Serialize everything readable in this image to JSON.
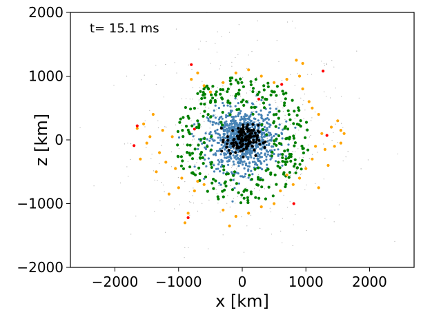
{
  "chart_data": {
    "type": "scatter",
    "annotation": "t= 15.1 ms",
    "xlabel": "x [km]",
    "ylabel": "z [km]",
    "xlim": [
      -2700,
      2700
    ],
    "ylim": [
      -2000,
      2000
    ],
    "xticks": [
      -2000,
      -1000,
      0,
      1000,
      2000
    ],
    "xtick_labels": [
      "−2000",
      "−1000",
      "0",
      "1000",
      "2000"
    ],
    "yticks": [
      -2000,
      -1000,
      0,
      1000,
      2000
    ],
    "ytick_labels": [
      "−2000",
      "−1000",
      "0",
      "1000",
      "2000"
    ],
    "grid": false,
    "legend": "none",
    "series": [
      {
        "color": "#aaaaaa",
        "marker": "tiny",
        "distribution": {
          "count": 420,
          "radius": 1600
        }
      },
      {
        "color": "#4682b4",
        "marker": "small",
        "distribution": {
          "count": 900,
          "radius": 480
        }
      },
      {
        "color": "#008000",
        "marker": "dot",
        "distribution": {
          "count": 300,
          "radius_min": 350,
          "radius_max": 1050
        }
      },
      {
        "color": "#ffa500",
        "marker": "dot",
        "points": [
          [
            -1650,
            180
          ],
          [
            -1600,
            -300
          ],
          [
            -1550,
            250
          ],
          [
            -1500,
            -50
          ],
          [
            -1450,
            50
          ],
          [
            -1300,
            -200
          ],
          [
            -1250,
            150
          ],
          [
            -1200,
            -350
          ],
          [
            -1100,
            50
          ],
          [
            -1050,
            -450
          ],
          [
            -1000,
            -750
          ],
          [
            -950,
            -600
          ],
          [
            -900,
            -1300
          ],
          [
            -850,
            -1150
          ],
          [
            -750,
            -800
          ],
          [
            -700,
            -650
          ],
          [
            -800,
            950
          ],
          [
            -700,
            1050
          ],
          [
            -600,
            850
          ],
          [
            -500,
            750
          ],
          [
            -300,
            -1100
          ],
          [
            -200,
            -1350
          ],
          [
            -100,
            -1200
          ],
          [
            100,
            -1150
          ],
          [
            300,
            -1050
          ],
          [
            500,
            -1000
          ],
          [
            600,
            -800
          ],
          [
            800,
            -700
          ],
          [
            900,
            -600
          ],
          [
            1000,
            -450
          ],
          [
            1100,
            -300
          ],
          [
            1150,
            -100
          ],
          [
            1250,
            100
          ],
          [
            1300,
            -150
          ],
          [
            1400,
            200
          ],
          [
            1450,
            -100
          ],
          [
            1500,
            300
          ],
          [
            1550,
            -50
          ],
          [
            1600,
            100
          ],
          [
            1550,
            150
          ],
          [
            1200,
            400
          ],
          [
            1050,
            600
          ],
          [
            950,
            800
          ],
          [
            900,
            1000
          ],
          [
            850,
            1250
          ],
          [
            950,
            1200
          ],
          [
            700,
            950
          ],
          [
            500,
            900
          ],
          [
            300,
            1000
          ],
          [
            100,
            1100
          ],
          [
            -100,
            1050
          ],
          [
            -300,
            900
          ],
          [
            1100,
            500
          ],
          [
            -1400,
            400
          ],
          [
            -1350,
            -500
          ],
          [
            1350,
            -400
          ],
          [
            -600,
            -700
          ],
          [
            700,
            -550
          ],
          [
            -1150,
            -850
          ],
          [
            1200,
            -750
          ]
        ]
      },
      {
        "color": "#ff0000",
        "marker": "dot",
        "points": [
          [
            -1700,
            -90
          ],
          [
            -1650,
            220
          ],
          [
            -800,
            1180
          ],
          [
            -850,
            -1220
          ],
          [
            -750,
            170
          ],
          [
            620,
            870
          ],
          [
            1270,
            1080
          ],
          [
            1330,
            70
          ],
          [
            810,
            -1000
          ],
          [
            260,
            640
          ]
        ]
      },
      {
        "color": "#000000",
        "marker": "dot",
        "distribution": {
          "count": 130,
          "radius": 230
        }
      }
    ]
  }
}
